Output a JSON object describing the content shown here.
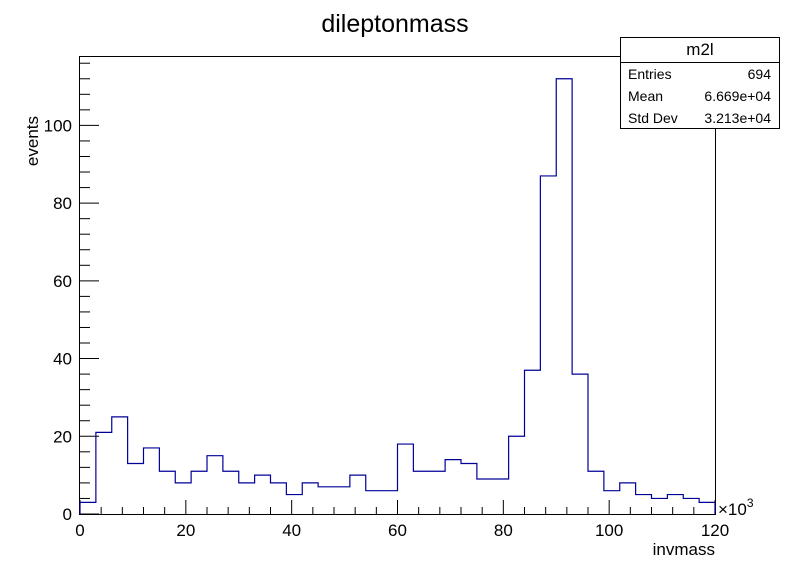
{
  "chart_data": {
    "type": "histogram",
    "title": "dileptonmass",
    "xlabel": "invmass",
    "ylabel": "events",
    "x_exponent_label": "×10",
    "x_exponent_power": "3",
    "xlim": [
      0,
      120
    ],
    "ylim": [
      0,
      117.6
    ],
    "bin_width": 3,
    "bin_low_edges": [
      0,
      3,
      6,
      9,
      12,
      15,
      18,
      21,
      24,
      27,
      30,
      33,
      36,
      39,
      42,
      45,
      48,
      51,
      54,
      57,
      60,
      63,
      66,
      69,
      72,
      75,
      78,
      81,
      84,
      87,
      90,
      93,
      96,
      99,
      102,
      105,
      108,
      111,
      114,
      117
    ],
    "values": [
      3,
      21,
      25,
      13,
      17,
      11,
      8,
      11,
      15,
      11,
      8,
      10,
      8,
      5,
      8,
      7,
      7,
      10,
      6,
      6,
      18,
      11,
      11,
      14,
      13,
      9,
      9,
      20,
      37,
      87,
      112,
      36,
      11,
      6,
      8,
      5,
      4,
      5,
      4,
      3
    ],
    "x_ticks": [
      0,
      20,
      40,
      60,
      80,
      100,
      120
    ],
    "y_ticks": [
      0,
      20,
      40,
      60,
      80,
      100
    ],
    "line_color": "#000099",
    "grid": false,
    "legend": "none"
  },
  "stats": {
    "name": "m2l",
    "rows": [
      {
        "label": "Entries",
        "value": "694"
      },
      {
        "label": "Mean",
        "value": "6.669e+04"
      },
      {
        "label": "Std Dev",
        "value": "3.213e+04"
      }
    ]
  }
}
